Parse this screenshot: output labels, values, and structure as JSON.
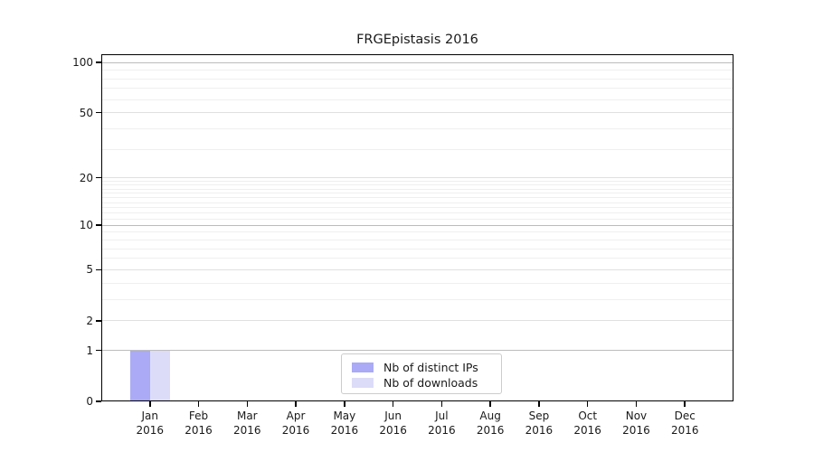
{
  "chart_data": {
    "type": "bar",
    "title": "FRGEpistasis 2016",
    "categories": [
      "Jan",
      "Feb",
      "Mar",
      "Apr",
      "May",
      "Jun",
      "Jul",
      "Aug",
      "Sep",
      "Oct",
      "Nov",
      "Dec"
    ],
    "category_year": "2016",
    "series": [
      {
        "name": "Nb of distinct IPs",
        "color": "#aaaaf6",
        "values": [
          1,
          0,
          0,
          0,
          0,
          0,
          0,
          0,
          0,
          0,
          0,
          0
        ]
      },
      {
        "name": "Nb of downloads",
        "color": "#dcdcf8",
        "values": [
          1,
          0,
          0,
          0,
          0,
          0,
          0,
          0,
          0,
          0,
          0,
          0
        ]
      }
    ],
    "y_axis": {
      "scale": "log1p",
      "tick_values": [
        0,
        1,
        2,
        5,
        10,
        20,
        50,
        100
      ],
      "ylim": [
        0,
        112
      ],
      "emphasized_gridlines": [
        1,
        10,
        100
      ],
      "minor_gridlines": [
        3,
        4,
        6,
        7,
        8,
        9,
        11,
        12,
        13,
        14,
        15,
        16,
        17,
        18,
        19,
        30,
        40,
        60,
        70,
        80,
        90
      ]
    },
    "legend": {
      "position": "lower center"
    }
  },
  "colors": {
    "grid_emphasized": "#bcbcbc",
    "grid_tick": "#e0e0e0",
    "grid_minor": "#efefef",
    "spine": "#000000",
    "text": "#1a1a1a",
    "legend_border": "#cccccc",
    "background": "#ffffff"
  }
}
